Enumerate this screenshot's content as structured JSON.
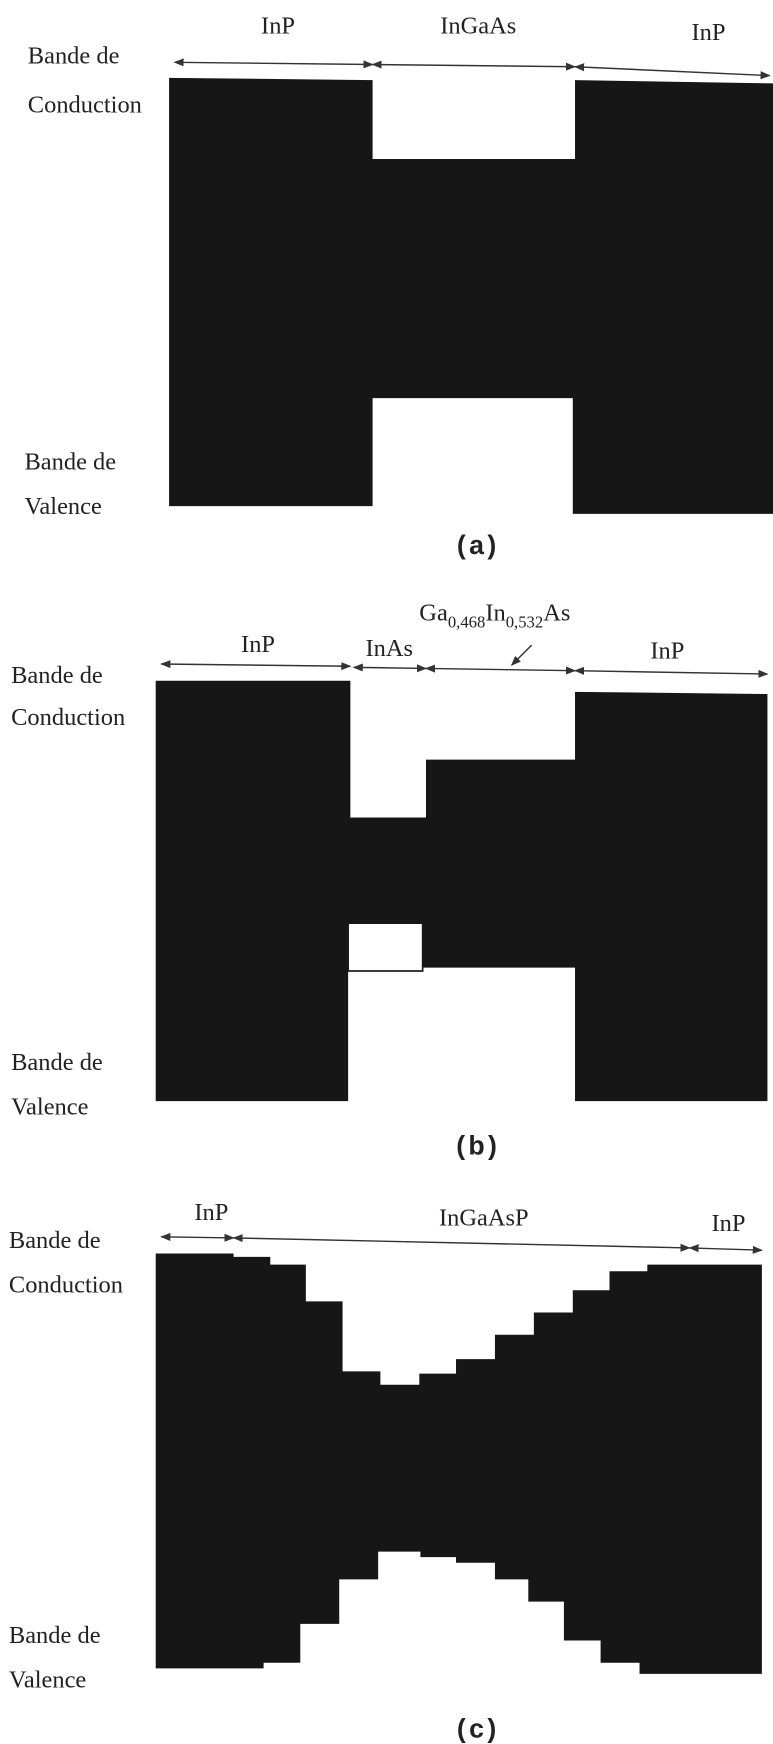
{
  "panels": [
    {
      "layers": [
        "InP",
        "InGaAs",
        "InP"
      ],
      "conduction": [
        "Bande de",
        "Conduction"
      ],
      "valence": [
        "Bande de",
        "Valence"
      ],
      "caption": "(a)"
    },
    {
      "layers": [
        "InP",
        "InAs",
        "InP"
      ],
      "formula": [
        "Ga",
        "0,468",
        "In",
        "0,532",
        "As"
      ],
      "conduction": [
        "Bande de",
        "Conduction"
      ],
      "valence": [
        "Bande de",
        "Valence"
      ],
      "caption": "(b)"
    },
    {
      "layers": [
        "InP",
        "InGaAsP",
        "InP"
      ],
      "conduction": [
        "Bande de",
        "Conduction"
      ],
      "valence": [
        "Bande de",
        "Valence"
      ],
      "caption": "(c)"
    }
  ]
}
